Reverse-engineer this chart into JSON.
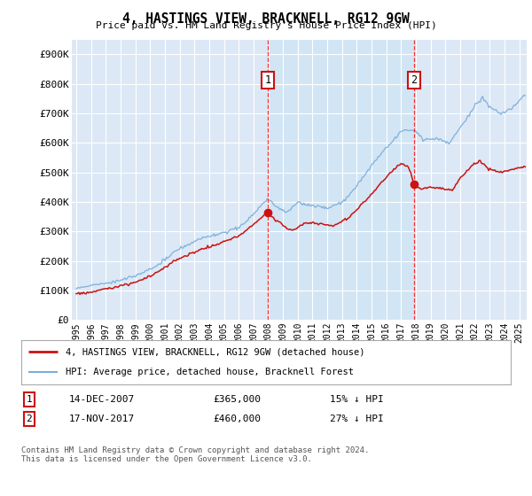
{
  "title": "4, HASTINGS VIEW, BRACKNELL, RG12 9GW",
  "subtitle": "Price paid vs. HM Land Registry's House Price Index (HPI)",
  "ylabel_ticks": [
    "£0",
    "£100K",
    "£200K",
    "£300K",
    "£400K",
    "£500K",
    "£600K",
    "£700K",
    "£800K",
    "£900K"
  ],
  "ytick_values": [
    0,
    100000,
    200000,
    300000,
    400000,
    500000,
    600000,
    700000,
    800000,
    900000
  ],
  "ylim": [
    0,
    950000
  ],
  "xlim_start": 1994.7,
  "xlim_end": 2025.5,
  "background_color": "#ffffff",
  "plot_bg_color": "#dce8f5",
  "shade_color": "#dce8f5",
  "shade_between_color": "#cce0f0",
  "grid_color": "#ffffff",
  "hpi_color": "#7aaddb",
  "price_color": "#cc1111",
  "marker1_date": 2007.96,
  "marker1_price": 365000,
  "marker1_label": "1",
  "marker1_text": "14-DEC-2007",
  "marker1_amount": "£365,000",
  "marker1_pct": "15% ↓ HPI",
  "marker2_date": 2017.88,
  "marker2_price": 460000,
  "marker2_label": "2",
  "marker2_text": "17-NOV-2017",
  "marker2_amount": "£460,000",
  "marker2_pct": "27% ↓ HPI",
  "legend_line1": "4, HASTINGS VIEW, BRACKNELL, RG12 9GW (detached house)",
  "legend_line2": "HPI: Average price, detached house, Bracknell Forest",
  "footnote": "Contains HM Land Registry data © Crown copyright and database right 2024.\nThis data is licensed under the Open Government Licence v3.0.",
  "xtick_years": [
    1995,
    1996,
    1997,
    1998,
    1999,
    2000,
    2001,
    2002,
    2003,
    2004,
    2005,
    2006,
    2007,
    2008,
    2009,
    2010,
    2011,
    2012,
    2013,
    2014,
    2015,
    2016,
    2017,
    2018,
    2019,
    2020,
    2021,
    2022,
    2023,
    2024,
    2025
  ]
}
